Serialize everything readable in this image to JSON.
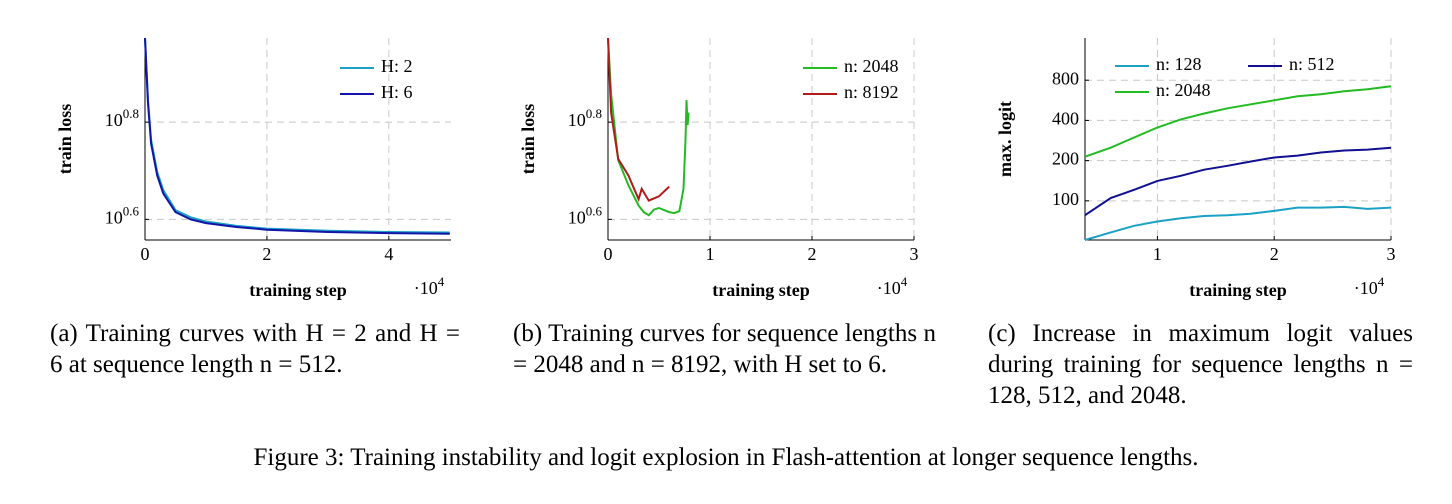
{
  "chart_data": [
    {
      "type": "line",
      "ylabel": "train loss",
      "xlabel": "training step",
      "x_multiplier": "·10^4",
      "xlim": [
        0,
        5.02
      ],
      "xticks": [
        0,
        2,
        4
      ],
      "ylog": true,
      "ylim": [
        3.61,
        9.4
      ],
      "yticks": [
        {
          "value": 3.981,
          "label": "10^0.6"
        },
        {
          "value": 6.31,
          "label": "10^0.8"
        }
      ],
      "grid": true,
      "legend": "top-right",
      "x": [
        0,
        0.05,
        0.1,
        0.2,
        0.3,
        0.5,
        0.75,
        1,
        1.5,
        2,
        3,
        4,
        5
      ],
      "series": [
        {
          "name": "H: 2",
          "color": "#1ba1c6",
          "values": [
            9.4,
            7.0,
            5.8,
            4.98,
            4.57,
            4.16,
            4.02,
            3.94,
            3.86,
            3.81,
            3.77,
            3.75,
            3.74
          ]
        },
        {
          "name": "H: 6",
          "color": "#1414a8",
          "values": [
            9.4,
            6.9,
            5.7,
            4.9,
            4.5,
            4.12,
            3.98,
            3.91,
            3.84,
            3.79,
            3.75,
            3.73,
            3.72
          ]
        }
      ],
      "caption": "(a) Training curves with H = 2 and H = 6 at sequence length n = 512."
    },
    {
      "type": "line",
      "ylabel": "train loss",
      "xlabel": "training step",
      "x_multiplier": "·10^4",
      "xlim": [
        0,
        3
      ],
      "xticks": [
        0,
        1,
        2,
        3
      ],
      "ylog": true,
      "ylim": [
        3.61,
        9.4
      ],
      "yticks": [
        {
          "value": 3.981,
          "label": "10^0.6"
        },
        {
          "value": 6.31,
          "label": "10^0.8"
        }
      ],
      "grid": true,
      "legend": "top-right",
      "series": [
        {
          "name": "n: 2048",
          "color": "#22bb22",
          "x": [
            0,
            0.03,
            0.1,
            0.2,
            0.3,
            0.35,
            0.4,
            0.45,
            0.5,
            0.6,
            0.65,
            0.7,
            0.74,
            0.76,
            0.77,
            0.78,
            0.79
          ],
          "values": [
            9.4,
            7.2,
            5.27,
            4.68,
            4.25,
            4.12,
            4.06,
            4.17,
            4.2,
            4.12,
            4.1,
            4.14,
            4.6,
            5.8,
            7.0,
            6.22,
            6.6
          ]
        },
        {
          "name": "n: 8192",
          "color": "#b01c1c",
          "x": [
            0,
            0.03,
            0.1,
            0.2,
            0.3,
            0.33,
            0.4,
            0.5,
            0.6
          ],
          "values": [
            9.4,
            6.6,
            5.3,
            4.9,
            4.38,
            4.6,
            4.35,
            4.44,
            4.65
          ]
        }
      ],
      "caption": "(b) Training curves for sequence lengths n = 2048 and n = 8192, with H set to 6."
    },
    {
      "type": "line",
      "ylabel": "max. logit",
      "xlabel": "training step",
      "x_multiplier": "·10^4",
      "xlim": [
        0.38,
        3
      ],
      "xticks": [
        1,
        2,
        3
      ],
      "ylog": true,
      "ylim": [
        50.9,
        1656
      ],
      "yticks": [
        100,
        200,
        400,
        800
      ],
      "grid": true,
      "legend": "top-left",
      "legend_columns": 2,
      "x": [
        0.38,
        0.6,
        0.8,
        1.0,
        1.2,
        1.4,
        1.6,
        1.8,
        2.0,
        2.2,
        2.4,
        2.6,
        2.8,
        3.0
      ],
      "series": [
        {
          "name": "n: 128",
          "color": "#1ba1c6",
          "values": [
            50.9,
            58,
            65,
            70,
            74,
            77,
            78,
            80,
            84,
            89,
            89,
            90,
            87,
            89
          ]
        },
        {
          "name": "n: 512",
          "color": "#101090",
          "values": [
            78,
            105,
            121,
            141,
            154,
            171,
            183,
            197,
            211,
            218,
            230,
            238,
            242,
            250
          ]
        },
        {
          "name": "n: 2048",
          "color": "#22bb22",
          "values": [
            214,
            250,
            298,
            354,
            407,
            451,
            493,
            528,
            566,
            606,
            628,
            662,
            685,
            720
          ]
        }
      ],
      "caption": "(c) Increase in maximum logit values during training for sequence lengths n = 128, 512, and 2048."
    }
  ],
  "figure_caption": "Figure 3: Training instability and logit explosion in Flash-attention at longer sequence lengths."
}
